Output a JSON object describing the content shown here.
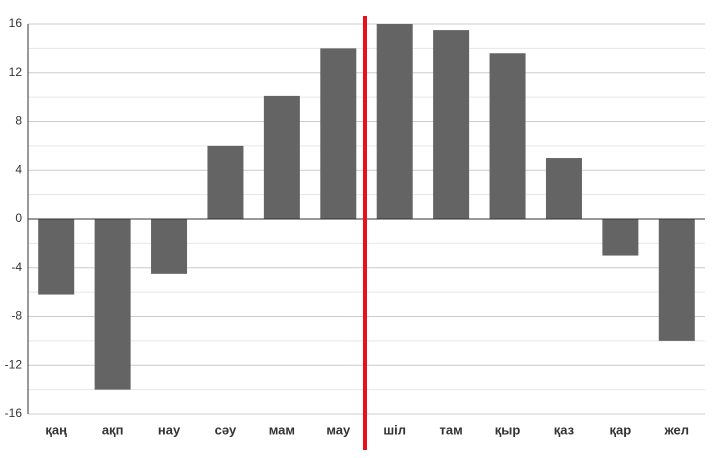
{
  "chart_data": {
    "type": "bar",
    "categories": [
      "қаң",
      "ақп",
      "нау",
      "сәу",
      "мам",
      "мау",
      "шіл",
      "там",
      "қыр",
      "қаз",
      "қар",
      "жел"
    ],
    "values": [
      -6.2,
      -14,
      -4.5,
      6,
      10.1,
      14,
      16,
      15.5,
      13.6,
      5,
      -3,
      -10
    ],
    "color": "#646464",
    "ylim": [
      -16,
      16
    ],
    "yticks": [
      -16,
      -12,
      -8,
      -4,
      0,
      4,
      8,
      12,
      16
    ],
    "grid": true
  }
}
